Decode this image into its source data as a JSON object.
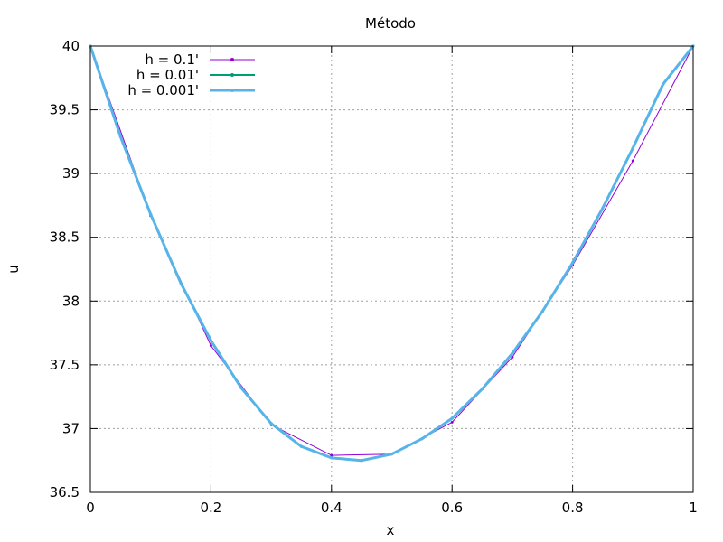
{
  "chart_data": {
    "type": "line",
    "title": "Método",
    "xlabel": "x",
    "ylabel": "u",
    "xlim": [
      0,
      1
    ],
    "ylim": [
      36.5,
      40
    ],
    "xticks": [
      0,
      0.2,
      0.4,
      0.6,
      0.8,
      1
    ],
    "xtick_labels": [
      "0",
      "0.2",
      "0.4",
      "0.6",
      "0.8",
      "1"
    ],
    "yticks": [
      36.5,
      37,
      37.5,
      38,
      38.5,
      39,
      39.5,
      40
    ],
    "ytick_labels": [
      "36.5",
      "37",
      "37.5",
      "38",
      "38.5",
      "39",
      "39.5",
      "40"
    ],
    "grid": true,
    "legend_position": "top-left",
    "series": [
      {
        "name": "h = 0.1'",
        "color": "#9400d3",
        "x": [
          0,
          0.1,
          0.2,
          0.3,
          0.4,
          0.5,
          0.6,
          0.7,
          0.8,
          0.9,
          1.0
        ],
        "y": [
          40,
          38.67,
          37.65,
          37.03,
          36.79,
          36.8,
          37.05,
          37.56,
          38.28,
          39.1,
          40
        ]
      },
      {
        "name": "h = 0.01'",
        "color": "#009e73",
        "x": [
          0,
          0.05,
          0.1,
          0.15,
          0.2,
          0.25,
          0.3,
          0.35,
          0.4,
          0.45,
          0.5,
          0.55,
          0.6,
          0.65,
          0.7,
          0.75,
          0.8,
          0.85,
          0.9,
          0.95,
          1.0
        ],
        "y": [
          40,
          39.29,
          38.68,
          38.14,
          37.69,
          37.32,
          37.04,
          36.86,
          36.77,
          36.75,
          36.8,
          36.92,
          37.08,
          37.31,
          37.59,
          37.92,
          38.3,
          38.73,
          39.2,
          39.7,
          40
        ]
      },
      {
        "name": "h = 0.001'",
        "color": "#56b4e9",
        "x": [
          0,
          0.05,
          0.1,
          0.15,
          0.2,
          0.25,
          0.3,
          0.35,
          0.4,
          0.45,
          0.5,
          0.55,
          0.6,
          0.65,
          0.7,
          0.75,
          0.8,
          0.85,
          0.9,
          0.95,
          1.0
        ],
        "y": [
          40,
          39.29,
          38.68,
          38.14,
          37.69,
          37.32,
          37.04,
          36.86,
          36.77,
          36.75,
          36.8,
          36.92,
          37.08,
          37.31,
          37.59,
          37.92,
          38.3,
          38.73,
          39.2,
          39.7,
          40
        ]
      }
    ]
  }
}
